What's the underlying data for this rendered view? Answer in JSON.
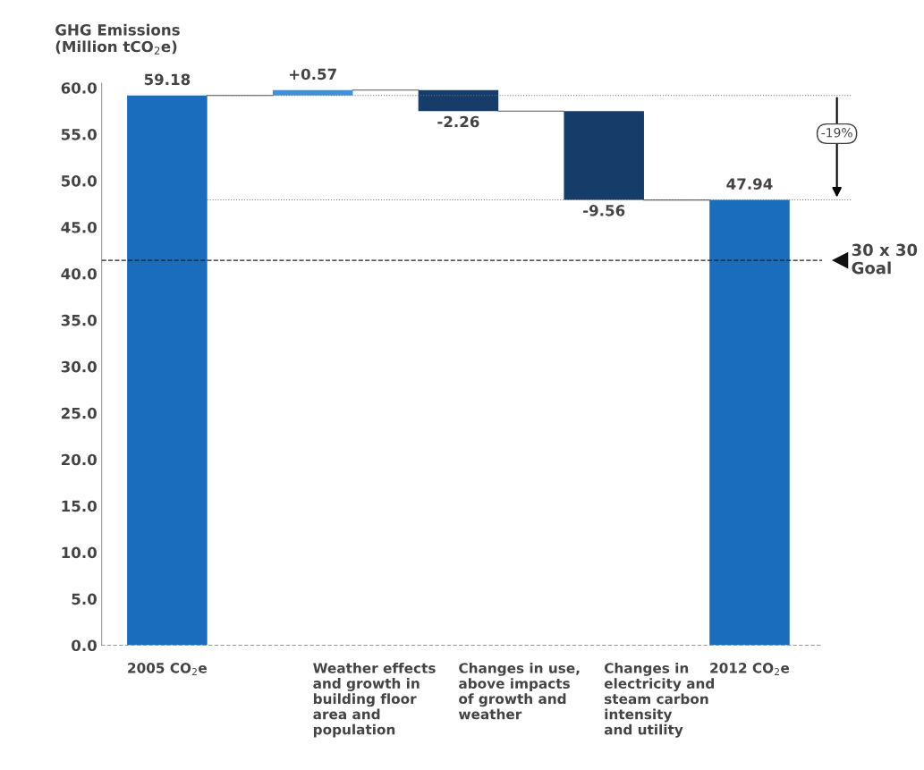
{
  "chart_data": {
    "type": "bar",
    "ylabel": "GHG Emissions\n(Million tCO$_{2}$e)",
    "categories": [
      "2005 CO$_{2}$e",
      "Weather effects\nand growth in\nbuilding floor\narea and\npopulation",
      "Changes in use,\nabove impacts\nof growth and\nweather",
      "Changes in\nelectricity and\nsteam carbon\nintensity\nand utility",
      "2012 CO$_{2}$e"
    ],
    "values": [
      59.18,
      0.57,
      -2.26,
      -9.56,
      47.94
    ],
    "base": [
      0,
      59.18,
      59.75,
      57.49,
      0
    ],
    "colors": [
      "#1a6cbd",
      "#3f8fdc",
      "#163d6a",
      "#163d6a",
      "#1a6cbd"
    ],
    "value_labels": [
      "59.18",
      "+0.57",
      "-2.26",
      "-9.56",
      "47.94"
    ],
    "ylim": [
      0,
      60.5
    ],
    "yticks": [
      {
        "value": 0,
        "label": "0.0"
      },
      {
        "value": 5,
        "label": "5.0"
      },
      {
        "value": 10,
        "label": "10.0"
      },
      {
        "value": 15,
        "label": "15.0"
      },
      {
        "value": 20,
        "label": "20.0"
      },
      {
        "value": 25,
        "label": "25.0"
      },
      {
        "value": 30,
        "label": "30.0"
      },
      {
        "value": 35,
        "label": "35.0"
      },
      {
        "value": 40,
        "label": "40.0"
      },
      {
        "value": 45,
        "label": "45.0"
      },
      {
        "value": 50,
        "label": "50.0"
      },
      {
        "value": 55,
        "label": "55.0"
      },
      {
        "value": 60,
        "label": "60.0"
      }
    ],
    "ref_lines": [
      {
        "axis": "y",
        "value": 41.43,
        "label": "30 x 30\nGoal",
        "color": "#222222",
        "line_style": "dashed"
      },
      {
        "axis": "y",
        "value": 59.18,
        "color": "#777777",
        "line_style": "dotted"
      },
      {
        "axis": "y",
        "value": 47.94,
        "color": "#777777",
        "line_style": "dotted"
      }
    ],
    "annotations": [
      "-19%"
    ],
    "grid": false,
    "legend": false
  }
}
